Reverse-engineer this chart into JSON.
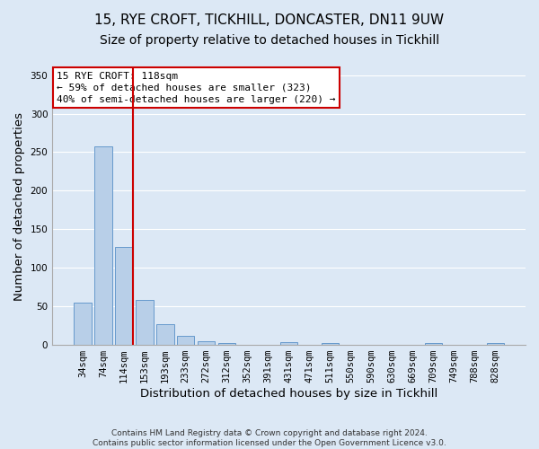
{
  "title": "15, RYE CROFT, TICKHILL, DONCASTER, DN11 9UW",
  "subtitle": "Size of property relative to detached houses in Tickhill",
  "xlabel": "Distribution of detached houses by size in Tickhill",
  "ylabel": "Number of detached properties",
  "footer_line1": "Contains HM Land Registry data © Crown copyright and database right 2024.",
  "footer_line2": "Contains public sector information licensed under the Open Government Licence v3.0.",
  "bar_labels": [
    "34sqm",
    "74sqm",
    "114sqm",
    "153sqm",
    "193sqm",
    "233sqm",
    "272sqm",
    "312sqm",
    "352sqm",
    "391sqm",
    "431sqm",
    "471sqm",
    "511sqm",
    "550sqm",
    "590sqm",
    "630sqm",
    "669sqm",
    "709sqm",
    "749sqm",
    "788sqm",
    "828sqm"
  ],
  "bar_values": [
    55,
    257,
    127,
    58,
    27,
    12,
    5,
    3,
    0,
    0,
    4,
    0,
    2,
    0,
    0,
    0,
    0,
    3,
    0,
    0,
    3
  ],
  "bar_color": "#b8cfe8",
  "bar_edge_color": "#6699cc",
  "background_color": "#dce8f5",
  "grid_color": "#ffffff",
  "annotation_box_text": "15 RYE CROFT: 118sqm\n← 59% of detached houses are smaller (323)\n40% of semi-detached houses are larger (220) →",
  "red_line_color": "#cc0000",
  "annotation_box_color": "#ffffff",
  "annotation_box_edge_color": "#cc0000",
  "ylim": [
    0,
    360
  ],
  "yticks": [
    0,
    50,
    100,
    150,
    200,
    250,
    300,
    350
  ],
  "title_fontsize": 11,
  "subtitle_fontsize": 10,
  "axis_label_fontsize": 9.5,
  "tick_fontsize": 7.5,
  "footer_fontsize": 6.5
}
